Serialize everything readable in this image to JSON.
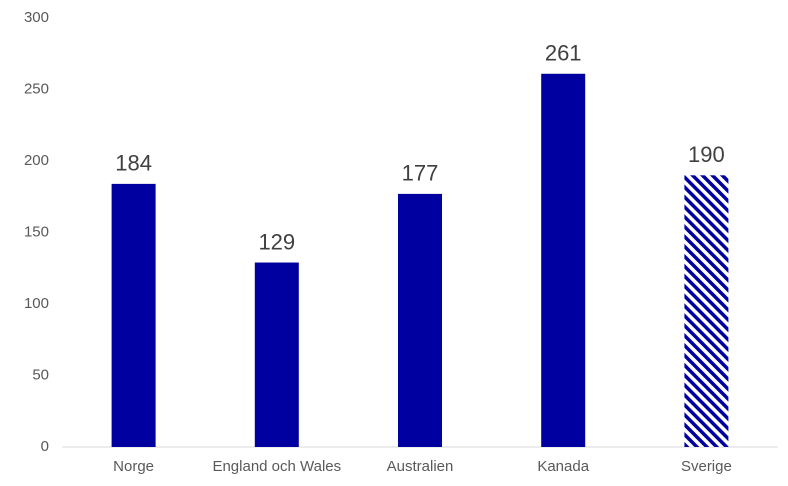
{
  "chart_data": {
    "type": "bar",
    "categories": [
      "Norge",
      "England och Wales",
      "Australien",
      "Kanada",
      "Sverige"
    ],
    "values": [
      184,
      129,
      177,
      261,
      190
    ],
    "color": "#0000a0",
    "hatched": [
      false,
      false,
      false,
      false,
      true
    ],
    "ylim": [
      0,
      300
    ],
    "yticks": [
      0,
      50,
      100,
      150,
      200,
      250,
      300
    ],
    "grid": false,
    "data_labels": true
  }
}
